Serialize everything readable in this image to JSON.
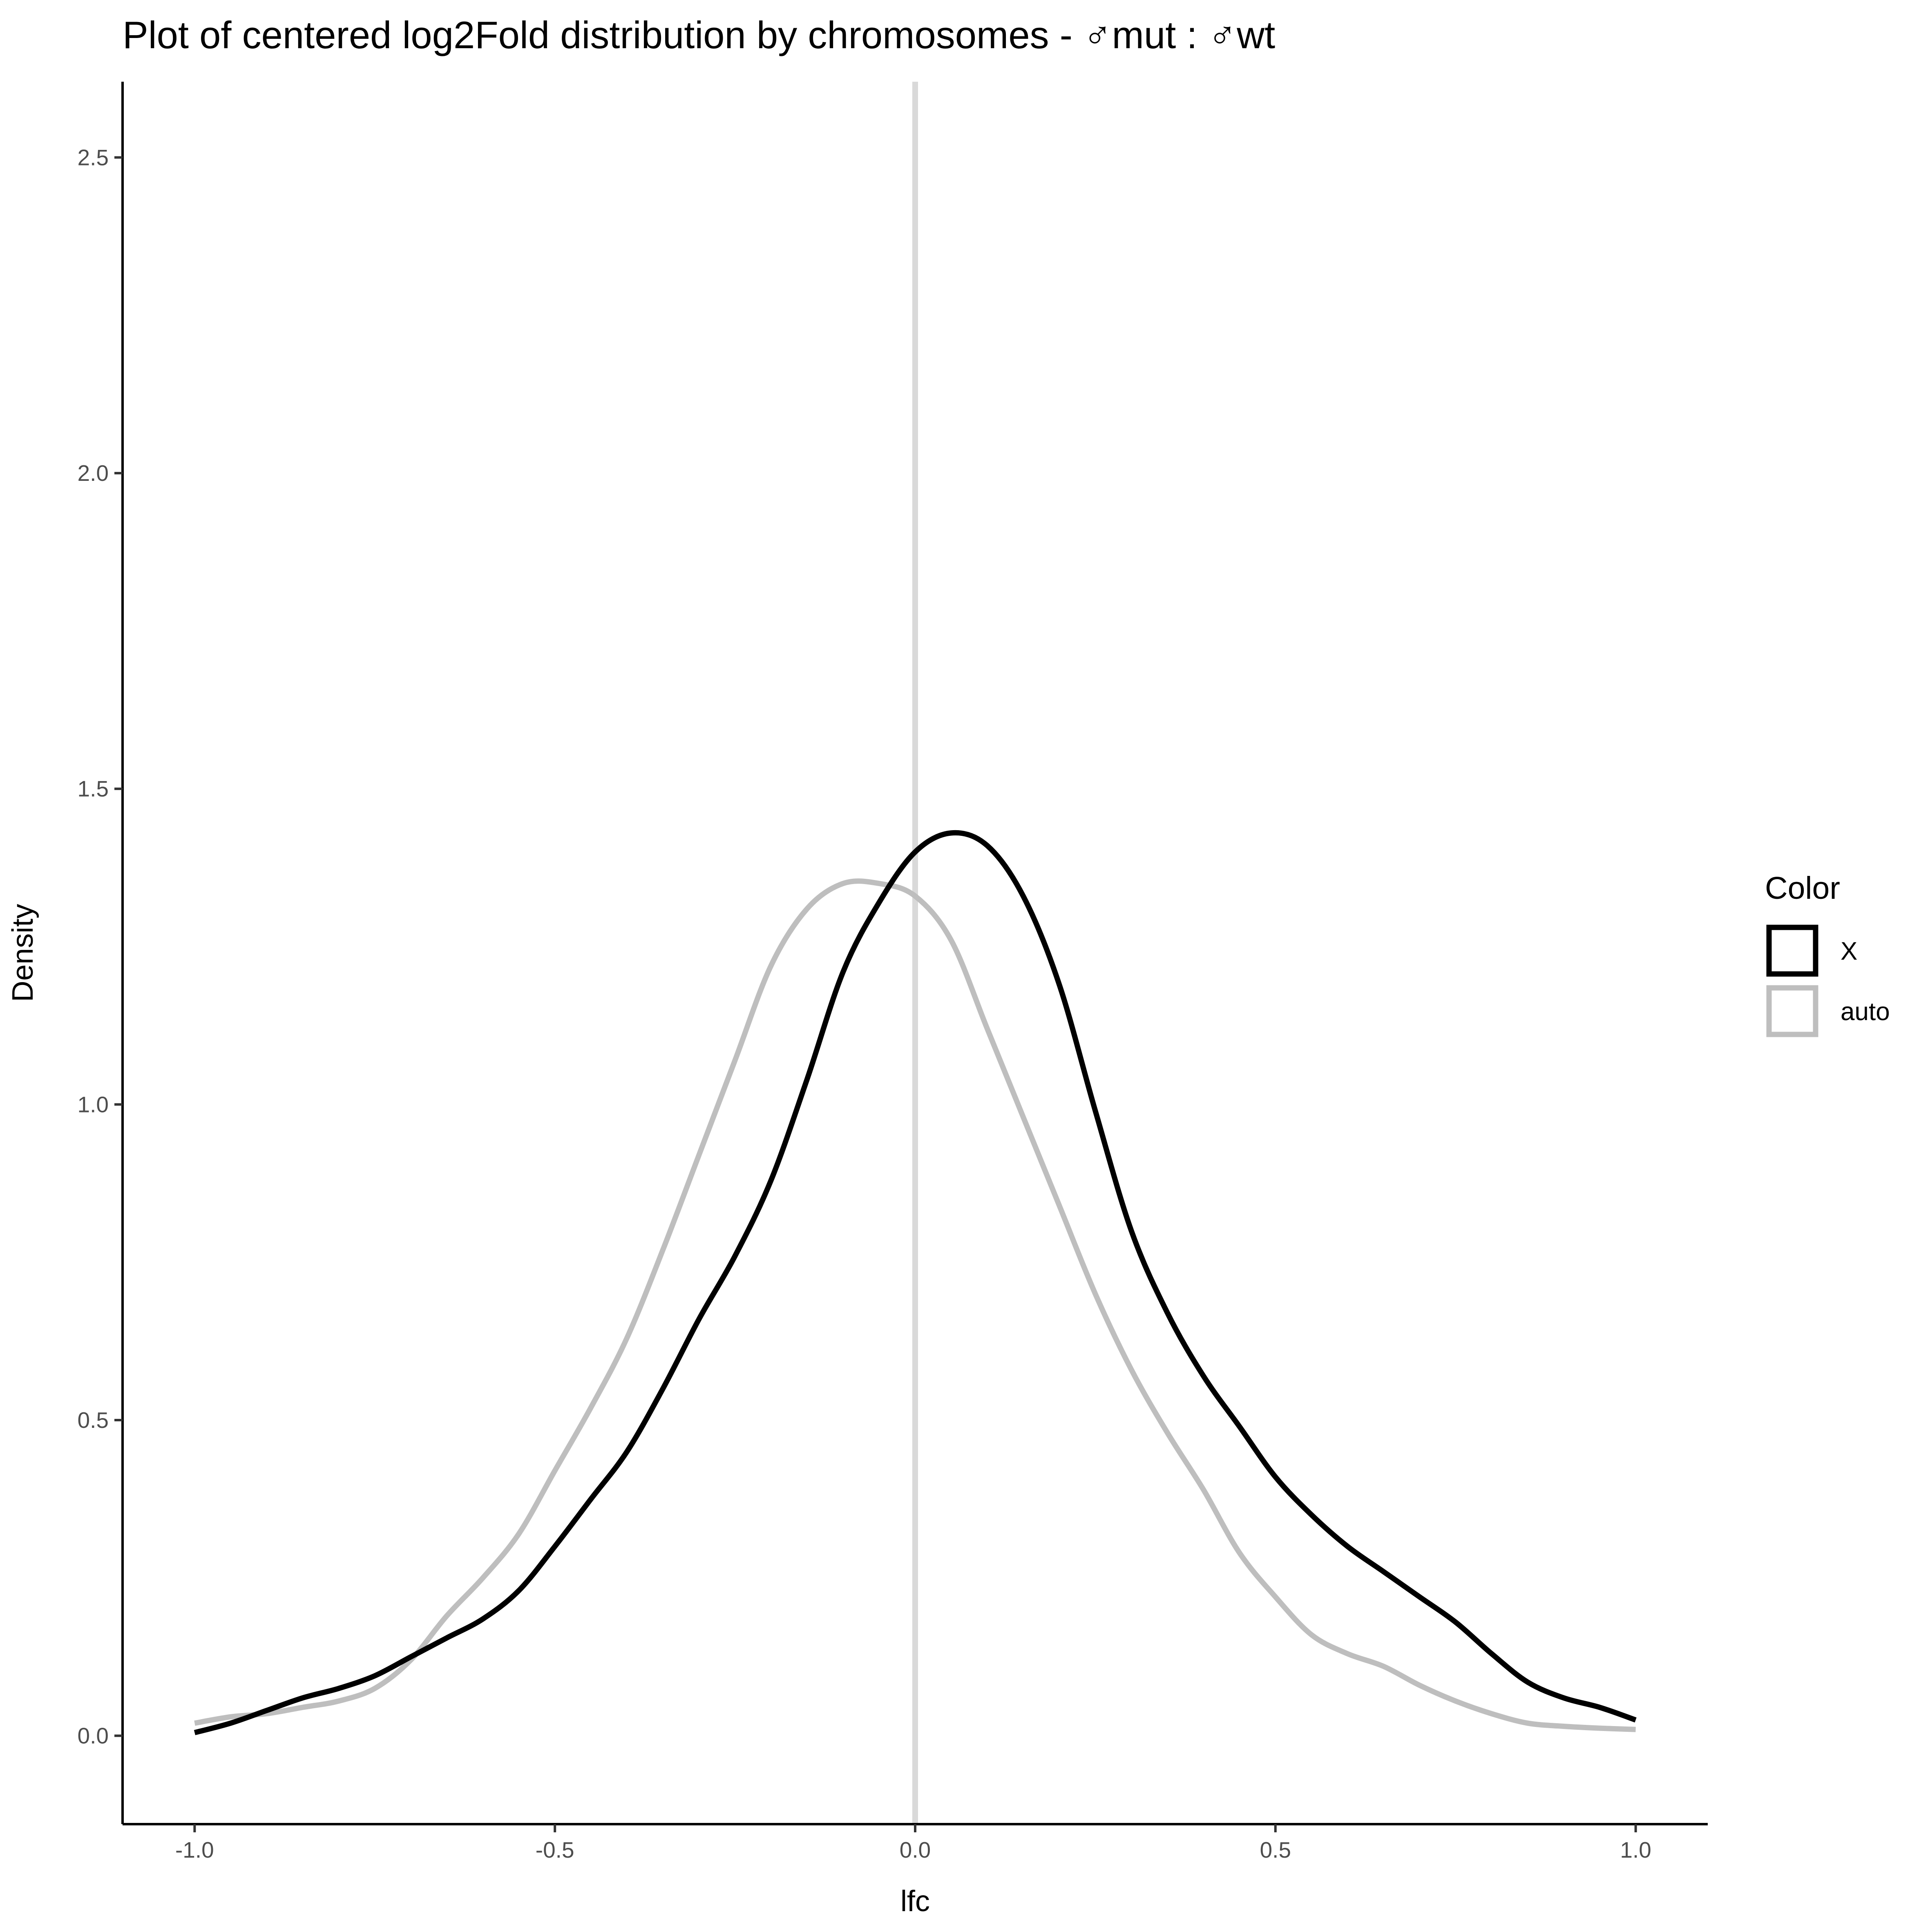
{
  "chart_data": {
    "type": "line",
    "subtype": "density",
    "title": "Plot of centered log2Fold distribution by chromosomes - ♂mut : ♂wt",
    "xlabel": "lfc",
    "ylabel": "Density",
    "xlim": [
      -1.1,
      1.1
    ],
    "ylim": [
      -0.14,
      2.62
    ],
    "x_ticks": [
      -1.0,
      -0.5,
      0.0,
      0.5,
      1.0
    ],
    "x_tick_labels": [
      "-1.0",
      "-0.5",
      "0.0",
      "0.5",
      "1.0"
    ],
    "y_ticks": [
      0.0,
      0.5,
      1.0,
      1.5,
      2.0,
      2.5
    ],
    "y_tick_labels": [
      "0.0",
      "0.5",
      "1.0",
      "1.5",
      "2.0",
      "2.5"
    ],
    "grid": false,
    "vline": {
      "x": 0.0,
      "color": "#d9d9d9"
    },
    "legend": {
      "title": "Color",
      "position": "right",
      "entries": [
        {
          "label": "X",
          "color": "#000000"
        },
        {
          "label": "auto",
          "color": "#bebebe"
        }
      ]
    },
    "series": [
      {
        "name": "X",
        "color": "#000000",
        "x": [
          -1.0,
          -0.95,
          -0.9,
          -0.85,
          -0.8,
          -0.75,
          -0.7,
          -0.65,
          -0.6,
          -0.55,
          -0.5,
          -0.45,
          -0.4,
          -0.35,
          -0.3,
          -0.25,
          -0.2,
          -0.15,
          -0.1,
          -0.05,
          0.0,
          0.05,
          0.1,
          0.15,
          0.2,
          0.25,
          0.3,
          0.35,
          0.4,
          0.45,
          0.5,
          0.55,
          0.6,
          0.65,
          0.7,
          0.75,
          0.8,
          0.85,
          0.9,
          0.95,
          1.0
        ],
        "y": [
          0.005,
          0.02,
          0.04,
          0.06,
          0.075,
          0.095,
          0.125,
          0.155,
          0.185,
          0.23,
          0.3,
          0.375,
          0.45,
          0.55,
          0.66,
          0.76,
          0.88,
          1.04,
          1.21,
          1.32,
          1.4,
          1.43,
          1.41,
          1.33,
          1.19,
          0.99,
          0.8,
          0.67,
          0.57,
          0.49,
          0.41,
          0.35,
          0.3,
          0.26,
          0.22,
          0.18,
          0.13,
          0.085,
          0.06,
          0.045,
          0.025
        ]
      },
      {
        "name": "auto",
        "color": "#bebebe",
        "x": [
          -1.0,
          -0.95,
          -0.9,
          -0.85,
          -0.8,
          -0.75,
          -0.7,
          -0.65,
          -0.6,
          -0.55,
          -0.5,
          -0.45,
          -0.4,
          -0.35,
          -0.3,
          -0.25,
          -0.2,
          -0.15,
          -0.1,
          -0.05,
          0.0,
          0.05,
          0.1,
          0.15,
          0.2,
          0.25,
          0.3,
          0.35,
          0.4,
          0.45,
          0.5,
          0.55,
          0.6,
          0.65,
          0.7,
          0.75,
          0.8,
          0.85,
          0.9,
          0.95,
          1.0
        ],
        "y": [
          0.02,
          0.03,
          0.035,
          0.045,
          0.055,
          0.075,
          0.12,
          0.19,
          0.25,
          0.32,
          0.42,
          0.52,
          0.63,
          0.77,
          0.92,
          1.07,
          1.22,
          1.31,
          1.35,
          1.35,
          1.33,
          1.26,
          1.12,
          0.98,
          0.84,
          0.7,
          0.58,
          0.48,
          0.39,
          0.29,
          0.22,
          0.16,
          0.13,
          0.11,
          0.08,
          0.055,
          0.035,
          0.02,
          0.015,
          0.012,
          0.01
        ]
      }
    ]
  }
}
